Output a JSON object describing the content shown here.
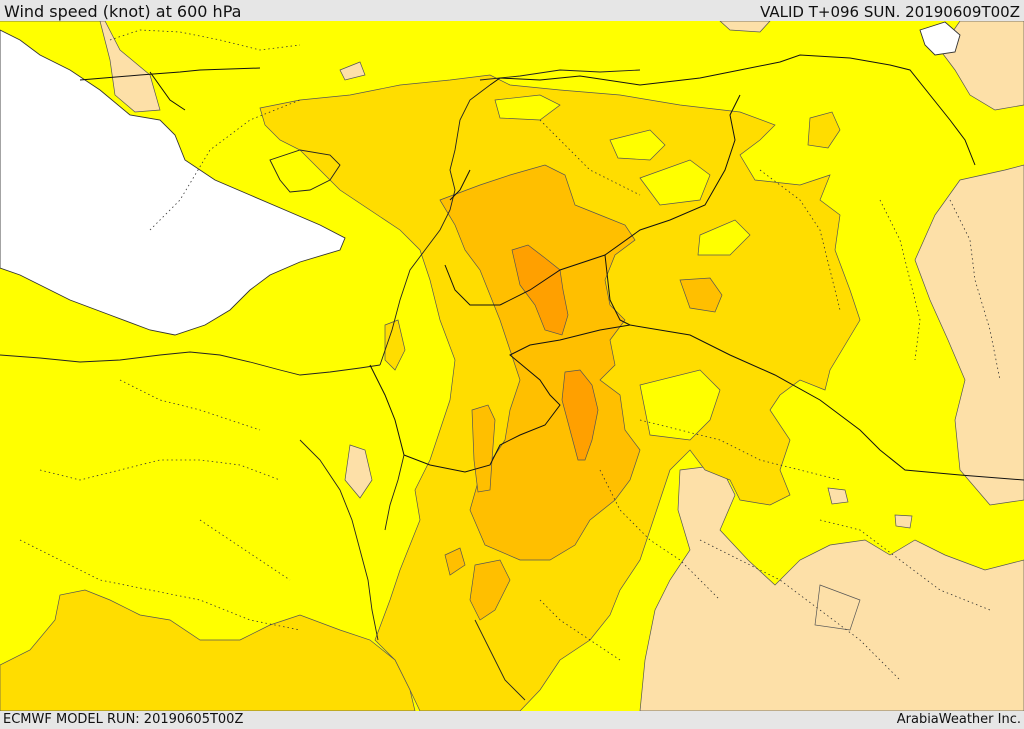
{
  "header": {
    "title": "Wind speed (knot) at 600 hPa",
    "valid": "VALID T+096 SUN. 20190609T00Z"
  },
  "footer": {
    "model_run": "ECMWF MODEL RUN: 20190605T00Z",
    "credit": "ArabiaWeather Inc."
  },
  "colors": {
    "background_field": "#ffff00",
    "low_speed": "#fde0a8",
    "level_1": "#ffdd00",
    "level_2": "#ffbf00",
    "level_3": "#ffa000",
    "sea": "#ffffff"
  }
}
